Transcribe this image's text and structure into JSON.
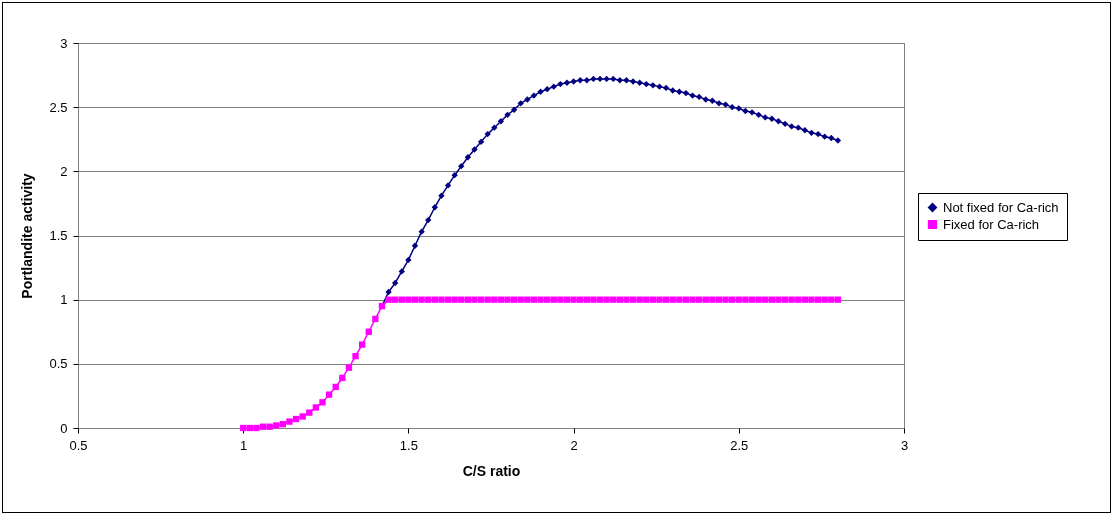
{
  "chart_data": {
    "type": "line",
    "xlabel": "C/S ratio",
    "ylabel": "Portlandite activity",
    "x": [
      1.0,
      1.02,
      1.04,
      1.06,
      1.08,
      1.1,
      1.12,
      1.14,
      1.16,
      1.18,
      1.2,
      1.22,
      1.24,
      1.26,
      1.28,
      1.3,
      1.32,
      1.34,
      1.36,
      1.38,
      1.4,
      1.42,
      1.44,
      1.46,
      1.48,
      1.5,
      1.52,
      1.54,
      1.56,
      1.58,
      1.6,
      1.62,
      1.64,
      1.66,
      1.68,
      1.7,
      1.72,
      1.74,
      1.76,
      1.78,
      1.8,
      1.82,
      1.84,
      1.86,
      1.88,
      1.9,
      1.92,
      1.94,
      1.96,
      1.98,
      2.0,
      2.02,
      2.04,
      2.06,
      2.08,
      2.1,
      2.12,
      2.14,
      2.16,
      2.18,
      2.2,
      2.22,
      2.24,
      2.26,
      2.28,
      2.3,
      2.32,
      2.34,
      2.36,
      2.38,
      2.4,
      2.42,
      2.44,
      2.46,
      2.48,
      2.5,
      2.52,
      2.54,
      2.56,
      2.58,
      2.6,
      2.62,
      2.64,
      2.66,
      2.68,
      2.7,
      2.72,
      2.74,
      2.76,
      2.78,
      2.8
    ],
    "series": [
      {
        "name": "Not fixed for Ca-rich",
        "color": "#000080",
        "marker": "diamond",
        "values": [
          null,
          null,
          null,
          null,
          null,
          null,
          null,
          null,
          null,
          null,
          null,
          null,
          null,
          null,
          null,
          null,
          null,
          null,
          null,
          null,
          null,
          0.95,
          1.06,
          1.13,
          1.22,
          1.31,
          1.42,
          1.53,
          1.62,
          1.72,
          1.81,
          1.89,
          1.97,
          2.04,
          2.11,
          2.17,
          2.23,
          2.29,
          2.34,
          2.39,
          2.44,
          2.48,
          2.53,
          2.56,
          2.59,
          2.62,
          2.64,
          2.66,
          2.68,
          2.69,
          2.7,
          2.71,
          2.71,
          2.72,
          2.72,
          2.72,
          2.72,
          2.71,
          2.71,
          2.7,
          2.69,
          2.68,
          2.67,
          2.66,
          2.65,
          2.63,
          2.62,
          2.61,
          2.59,
          2.58,
          2.56,
          2.55,
          2.53,
          2.52,
          2.5,
          2.49,
          2.47,
          2.46,
          2.44,
          2.42,
          2.41,
          2.39,
          2.37,
          2.35,
          2.34,
          2.32,
          2.3,
          2.29,
          2.27,
          2.26,
          2.24
        ]
      },
      {
        "name": "Fixed for Ca-rich",
        "color": "#ff00ff",
        "marker": "square",
        "values": [
          0.0,
          0.0,
          0.0,
          0.01,
          0.01,
          0.02,
          0.03,
          0.05,
          0.07,
          0.09,
          0.12,
          0.16,
          0.2,
          0.26,
          0.32,
          0.39,
          0.47,
          0.56,
          0.65,
          0.75,
          0.85,
          0.95,
          1.0,
          1.0,
          1.0,
          1.0,
          1.0,
          1.0,
          1.0,
          1.0,
          1.0,
          1.0,
          1.0,
          1.0,
          1.0,
          1.0,
          1.0,
          1.0,
          1.0,
          1.0,
          1.0,
          1.0,
          1.0,
          1.0,
          1.0,
          1.0,
          1.0,
          1.0,
          1.0,
          1.0,
          1.0,
          1.0,
          1.0,
          1.0,
          1.0,
          1.0,
          1.0,
          1.0,
          1.0,
          1.0,
          1.0,
          1.0,
          1.0,
          1.0,
          1.0,
          1.0,
          1.0,
          1.0,
          1.0,
          1.0,
          1.0,
          1.0,
          1.0,
          1.0,
          1.0,
          1.0,
          1.0,
          1.0,
          1.0,
          1.0,
          1.0,
          1.0,
          1.0,
          1.0,
          1.0,
          1.0,
          1.0,
          1.0,
          1.0,
          1.0,
          1.0
        ]
      }
    ],
    "xlim": [
      0.5,
      3
    ],
    "xticks": [
      0.5,
      1,
      1.5,
      2,
      2.5,
      3
    ],
    "ylim": [
      0,
      3
    ],
    "yticks": [
      0,
      0.5,
      1,
      1.5,
      2,
      2.5,
      3
    ],
    "grid": "y",
    "legend": "right",
    "line_style": "solid"
  }
}
